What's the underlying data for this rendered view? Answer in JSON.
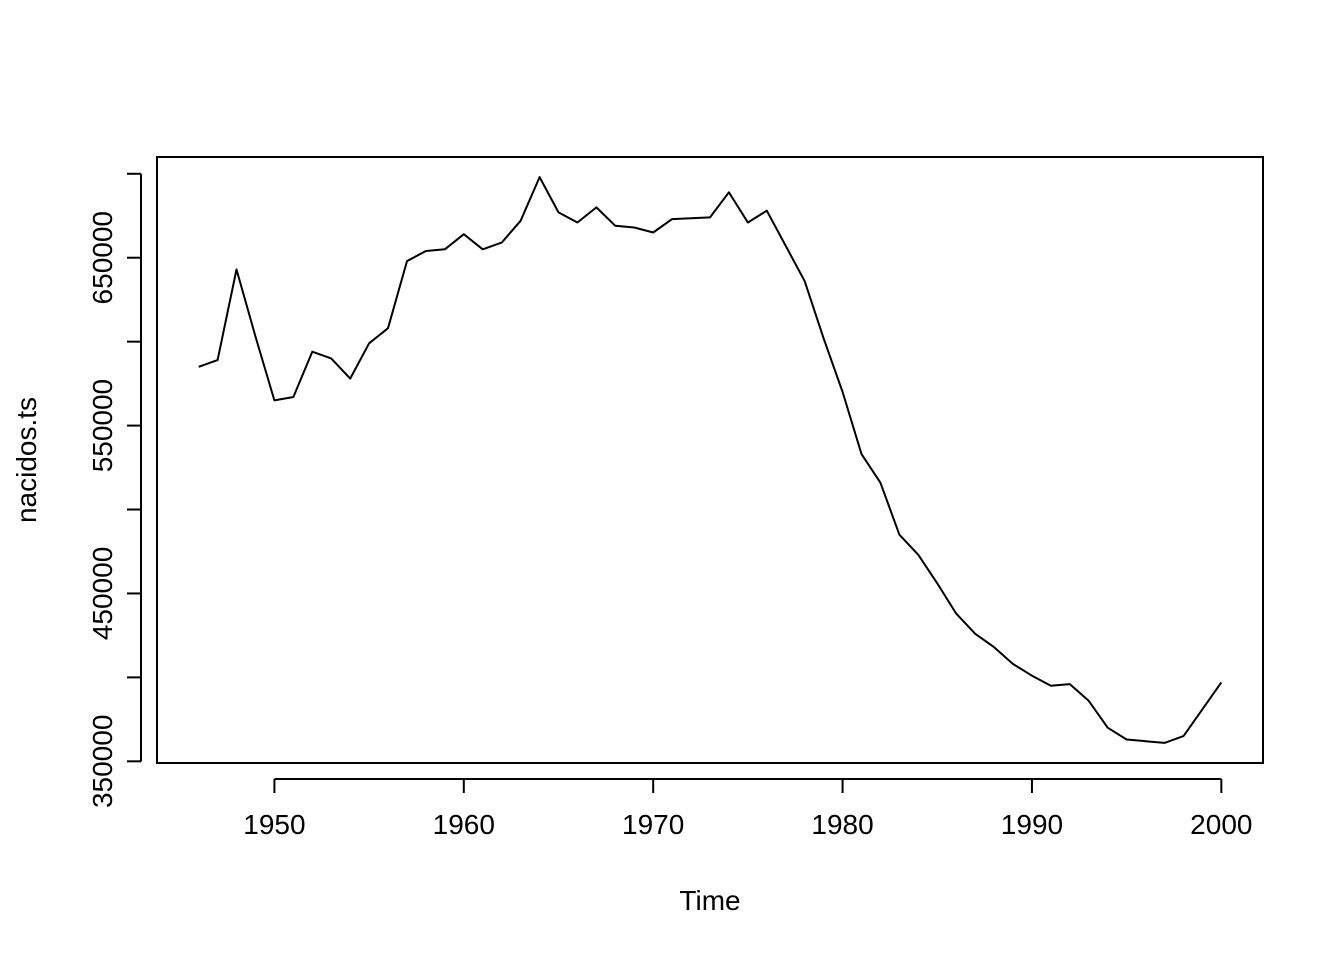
{
  "chart_data": {
    "type": "line",
    "title": "",
    "xlabel": "Time",
    "ylabel": "nacidos.ts",
    "xlim": [
      1943.8,
      2002.2
    ],
    "ylim": [
      349000,
      710000
    ],
    "x_ticks": [
      1950,
      1960,
      1970,
      1980,
      1990,
      2000
    ],
    "x_tick_labels": [
      "1950",
      "1960",
      "1970",
      "1980",
      "1990",
      "2000"
    ],
    "y_ticks": [
      350000,
      400000,
      450000,
      500000,
      550000,
      600000,
      650000,
      700000
    ],
    "y_tick_labels": [
      "350000",
      "",
      "450000",
      "",
      "550000",
      "",
      "650000",
      ""
    ],
    "grid": false,
    "series": [
      {
        "x": [
          1946,
          1947,
          1948,
          1949,
          1950,
          1951,
          1952,
          1953,
          1954,
          1955,
          1956,
          1957,
          1958,
          1959,
          1960,
          1961,
          1962,
          1963,
          1964,
          1965,
          1966,
          1967,
          1968,
          1969,
          1970,
          1971,
          1972,
          1973,
          1974,
          1975,
          1976,
          1977,
          1978,
          1979,
          1980,
          1981,
          1982,
          1983,
          1984,
          1985,
          1986,
          1987,
          1988,
          1989,
          1990,
          1991,
          1992,
          1993,
          1994,
          1995,
          1996,
          1997,
          1998,
          1999,
          2000
        ],
        "values": [
          585000,
          589000,
          643000,
          603000,
          565000,
          567000,
          594000,
          590000,
          578000,
          599000,
          608000,
          648000,
          654000,
          655000,
          664000,
          655000,
          659000,
          672000,
          698000,
          677000,
          671000,
          680000,
          669000,
          668000,
          665000,
          673000,
          673500,
          674000,
          689000,
          671000,
          678000,
          657000,
          636000,
          602000,
          570000,
          533000,
          516000,
          485000,
          473000,
          456000,
          438000,
          426000,
          418000,
          408000,
          401000,
          395000,
          396000,
          386000,
          370000,
          363000,
          362000,
          361000,
          365000,
          381000,
          397000
        ]
      }
    ]
  }
}
